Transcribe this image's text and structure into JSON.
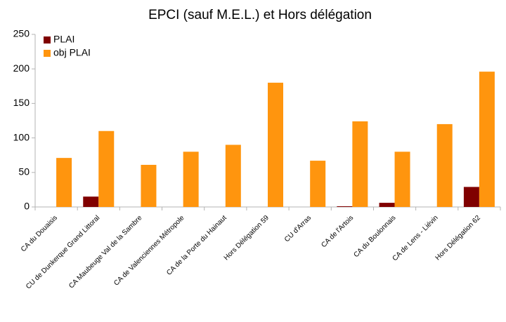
{
  "chart_data": {
    "type": "bar",
    "title": "EPCI (sauf M.E.L.) et Hors délégation",
    "categories": [
      "CA du Douaisis",
      "CU de Dunkerque Grand Littoral",
      "CA Maubeuge Val de la Sambre",
      "CA de Valenciennes Métropole",
      "CA de la Porte du Hainaut",
      "Hors Délégation 59",
      "CU d'Arras",
      "CA de l'Artois",
      "CA du Boulonnais",
      "CA de Lens - Liévin",
      "Hors Délégation 62"
    ],
    "series": [
      {
        "name": "PLAI",
        "color": "#800000",
        "values": [
          0,
          15,
          0,
          0,
          0,
          0,
          0,
          1,
          6,
          0,
          29
        ]
      },
      {
        "name": "obj PLAI",
        "color": "#ff950e",
        "values": [
          71,
          110,
          61,
          80,
          90,
          180,
          67,
          124,
          80,
          120,
          196
        ]
      }
    ],
    "ylim": [
      0,
      250
    ],
    "yticks": [
      0,
      50,
      100,
      150,
      200,
      250
    ],
    "grid": false,
    "legend": "top-left"
  }
}
